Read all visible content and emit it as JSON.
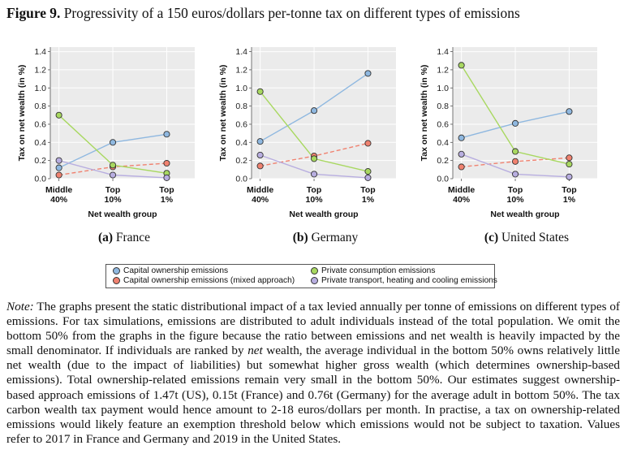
{
  "figure": {
    "label": "Figure 9.",
    "title": "Progressivity of a 150 euros/dollars per-tonne tax on different types of emissions"
  },
  "legend": {
    "items": [
      {
        "label": "Capital ownership emissions",
        "color": "#8fb8e0"
      },
      {
        "label": "Capital ownership emissions (mixed approach)",
        "color": "#f08270"
      },
      {
        "label": "Private consumption emissions",
        "color": "#a8d860"
      },
      {
        "label": "Private transport, heating and cooling emissions",
        "color": "#b8aee0"
      }
    ]
  },
  "note": {
    "lead": "Note:",
    "text_before_net": " The graphs present the static distributional impact of a tax levied annually per tonne of emissions on different types of emissions. For tax simulations, emissions are distributed to adult individuals instead of the total population. We omit the bottom 50% from the graphs in the figure because the ratio between emissions and net wealth is heavily impacted by the small denominator. If individuals are ranked by ",
    "net_word": "net",
    "text_after_net": " wealth, the average individual in the bottom 50% owns relatively little net wealth (due to the impact of liabilities) but somewhat higher gross wealth (which determines ownership-based emissions). Total ownership-related emissions remain very small in the bottom 50%. Our estimates suggest ownership-based approach emissions of 1.47t (US), 0.15t (France) and 0.76t (Germany) for the average adult in bottom 50%. The tax carbon wealth tax payment would hence amount to 2-18 euros/dollars per month. In practise, a tax on ownership-related emissions would likely feature an exemption threshold below which emissions would not be subject to taxation. Values refer to 2017 in France and Germany and 2019 in the United States."
  },
  "chart_data": [
    {
      "type": "line",
      "caption_letter": "(a)",
      "caption_name": "France",
      "ylabel": "Tax on net wealth (in %)",
      "xlabel": "Net wealth group",
      "categories": [
        "Middle\n40%",
        "Top\n10%",
        "Top\n1%"
      ],
      "ylim": [
        0,
        1.45
      ],
      "yticks": [
        "0.0",
        "0.2",
        "0.4",
        "0.6",
        "0.8",
        "1.0",
        "1.2",
        "1.4"
      ],
      "grid": true,
      "series": [
        {
          "name": "Capital ownership emissions",
          "values": [
            0.12,
            0.4,
            0.49
          ],
          "color": "#8fb8e0",
          "dash": false
        },
        {
          "name": "Capital ownership emissions (mixed approach)",
          "values": [
            0.04,
            0.13,
            0.17
          ],
          "color": "#f08270",
          "dash": true
        },
        {
          "name": "Private consumption emissions",
          "values": [
            0.7,
            0.15,
            0.06
          ],
          "color": "#a8d860",
          "dash": false
        },
        {
          "name": "Private transport, heating and cooling emissions",
          "values": [
            0.2,
            0.04,
            0.01
          ],
          "color": "#b8aee0",
          "dash": false
        }
      ]
    },
    {
      "type": "line",
      "caption_letter": "(b)",
      "caption_name": "Germany",
      "ylabel": "Tax on net wealth (in %)",
      "xlabel": "Net wealth group",
      "categories": [
        "Middle\n40%",
        "Top\n10%",
        "Top\n1%"
      ],
      "ylim": [
        0,
        1.45
      ],
      "yticks": [
        "0.0",
        "0.2",
        "0.4",
        "0.6",
        "0.8",
        "1.0",
        "1.2",
        "1.4"
      ],
      "grid": true,
      "series": [
        {
          "name": "Capital ownership emissions",
          "values": [
            0.41,
            0.75,
            1.16
          ],
          "color": "#8fb8e0",
          "dash": false
        },
        {
          "name": "Capital ownership emissions (mixed approach)",
          "values": [
            0.14,
            0.25,
            0.39
          ],
          "color": "#f08270",
          "dash": true
        },
        {
          "name": "Private consumption emissions",
          "values": [
            0.96,
            0.22,
            0.08
          ],
          "color": "#a8d860",
          "dash": false
        },
        {
          "name": "Private transport, heating and cooling emissions",
          "values": [
            0.26,
            0.05,
            0.01
          ],
          "color": "#b8aee0",
          "dash": false
        }
      ]
    },
    {
      "type": "line",
      "caption_letter": "(c)",
      "caption_name": "United States",
      "ylabel": "Tax on net wealth (in %)",
      "xlabel": "Net wealth group",
      "categories": [
        "Middle\n40%",
        "Top\n10%",
        "Top\n1%"
      ],
      "ylim": [
        0,
        1.45
      ],
      "yticks": [
        "0.0",
        "0.2",
        "0.4",
        "0.6",
        "0.8",
        "1.0",
        "1.2",
        "1.4"
      ],
      "grid": true,
      "series": [
        {
          "name": "Capital ownership emissions",
          "values": [
            0.45,
            0.61,
            0.74
          ],
          "color": "#8fb8e0",
          "dash": false
        },
        {
          "name": "Capital ownership emissions (mixed approach)",
          "values": [
            0.13,
            0.19,
            0.23
          ],
          "color": "#f08270",
          "dash": true
        },
        {
          "name": "Private consumption emissions",
          "values": [
            1.25,
            0.3,
            0.16
          ],
          "color": "#a8d860",
          "dash": false
        },
        {
          "name": "Private transport, heating and cooling emissions",
          "values": [
            0.27,
            0.05,
            0.02
          ],
          "color": "#b8aee0",
          "dash": false
        }
      ]
    }
  ]
}
